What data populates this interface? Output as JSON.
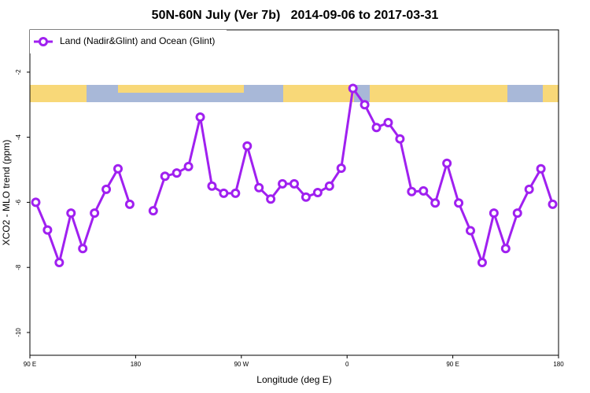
{
  "chart_data": {
    "type": "line",
    "title": "50N-60N July (Ver 7b)   2014-09-06 to 2017-03-31",
    "x_label": "Longitude (deg E)",
    "y_label": "XCO2 - MLO trend (ppm)",
    "x": [
      95,
      105,
      115,
      125,
      135,
      145,
      155,
      165,
      175,
      185,
      195,
      205,
      215,
      225,
      235,
      245,
      255,
      265,
      275,
      285,
      295,
      305,
      315,
      325,
      335,
      345,
      355,
      365,
      375,
      385,
      395,
      405,
      415,
      425,
      435,
      445,
      455,
      465,
      475,
      485,
      495,
      505,
      515,
      525,
      535
    ],
    "series": [
      {
        "name": "Land (Nadir&Glint) and Ocean (Glint)",
        "color": "#a020f0",
        "values": [
          -6.0,
          -6.85,
          -7.85,
          -6.33,
          -7.42,
          -6.33,
          -5.6,
          -4.97,
          -6.06,
          null,
          -6.26,
          -5.2,
          -5.1,
          -4.9,
          -3.38,
          -5.5,
          -5.72,
          -5.72,
          -4.27,
          -5.55,
          -5.9,
          -5.43,
          -5.43,
          -5.84,
          -5.7,
          -5.5,
          -4.95,
          -2.5,
          -3.0,
          -3.7,
          -3.55,
          -4.05,
          -5.67,
          -5.65,
          -6.02,
          -4.8,
          -6.02,
          -6.87,
          -7.85,
          -6.33,
          -7.42,
          -6.33,
          -5.6,
          -4.97,
          -6.06
        ]
      }
    ],
    "xlim": [
      90,
      540
    ],
    "xticks": [
      {
        "value": 90,
        "label": "90 E"
      },
      180,
      {
        "value": 270,
        "label": "90 W"
      },
      {
        "value": 360,
        "label": "0"
      },
      {
        "value": 450,
        "label": "90 E"
      },
      {
        "value": 540,
        "label": "180"
      }
    ],
    "ylim": [
      -10.7,
      -0.7
    ],
    "yticks": [
      -10,
      -8,
      -6,
      -4,
      -2
    ],
    "legend_position": "top-left"
  }
}
